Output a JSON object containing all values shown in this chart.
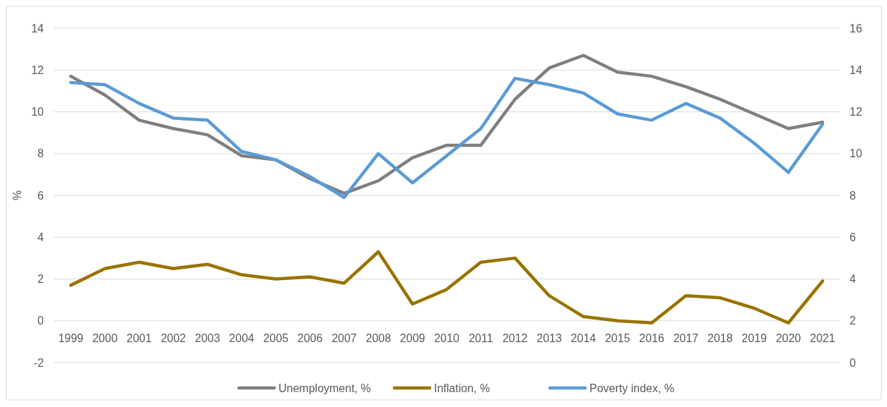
{
  "chart_data": {
    "type": "line",
    "ylabel": "%",
    "categories": [
      "1999",
      "2000",
      "2001",
      "2002",
      "2003",
      "2004",
      "2005",
      "2006",
      "2007",
      "2008",
      "2009",
      "2010",
      "2011",
      "2012",
      "2013",
      "2014",
      "2015",
      "2016",
      "2017",
      "2018",
      "2019",
      "2020",
      "2021"
    ],
    "series": [
      {
        "name": "Unemployment, %",
        "color": "#7f7f7f",
        "values": [
          11.7,
          10.8,
          9.6,
          9.2,
          8.9,
          7.9,
          7.7,
          6.8,
          6.1,
          6.7,
          7.8,
          8.4,
          8.4,
          10.6,
          12.1,
          12.7,
          11.9,
          11.7,
          11.2,
          10.6,
          9.9,
          9.2,
          9.5
        ]
      },
      {
        "name": "Inflation, %",
        "color": "#997300",
        "values": [
          1.7,
          2.5,
          2.8,
          2.5,
          2.7,
          2.2,
          2.0,
          2.1,
          1.8,
          3.3,
          0.8,
          1.5,
          2.8,
          3.0,
          1.2,
          0.2,
          0.0,
          -0.1,
          1.2,
          1.1,
          0.6,
          -0.1,
          1.9
        ]
      },
      {
        "name": "Poverty index, %",
        "color": "#5b9bd5",
        "axis": "y2",
        "values": [
          13.4,
          13.3,
          12.4,
          11.7,
          11.6,
          10.1,
          9.7,
          8.9,
          7.9,
          10.0,
          8.6,
          9.9,
          11.2,
          13.6,
          13.3,
          12.9,
          11.9,
          11.6,
          12.4,
          11.7,
          10.5,
          9.1,
          11.4
        ]
      }
    ],
    "ylim": [
      -2,
      14
    ],
    "yticks": [
      -2,
      0,
      2,
      4,
      6,
      8,
      10,
      12,
      14
    ],
    "y2lim": [
      0,
      16
    ],
    "y2ticks": [
      0,
      2,
      4,
      6,
      8,
      10,
      12,
      14,
      16
    ],
    "grid": "y",
    "legend": "bottom",
    "marker": "none",
    "line_style": "solid"
  }
}
